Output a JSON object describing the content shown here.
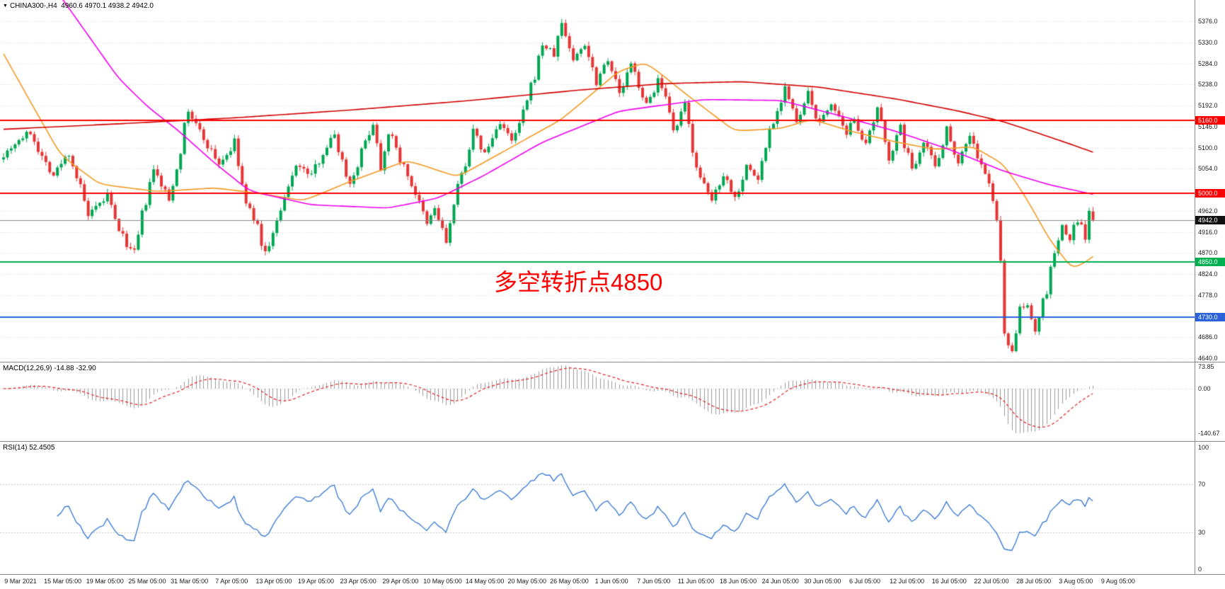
{
  "header": {
    "symbol": "CHINA300-,H4",
    "ohlc": "4960.6 4970.1 4938.2 4942.0"
  },
  "icons": {
    "symbol_dropdown": "▼"
  },
  "chart_data": [
    {
      "type": "candlestick",
      "title": "CHINA300- H4 candlestick chart",
      "symbol": "CHINA300-",
      "timeframe": "H4",
      "up_color": "#00A651",
      "down_color": "#E53535",
      "current_ohlc": {
        "open": 4960.6,
        "high": 4970.1,
        "low": 4938.2,
        "close": 4942.0
      },
      "current_price": {
        "value": 4942.0,
        "label": "4942.0",
        "badge_color": "#111111"
      },
      "y_axis": {
        "min": 4640,
        "max": 5376,
        "step": 46,
        "ticks": [
          5376,
          5330,
          5284,
          5238,
          5192,
          5146,
          5100,
          5054,
          4962,
          4916,
          4870,
          4824,
          4778,
          4686,
          4640
        ],
        "hidden_ticks": [
          5008,
          4732
        ]
      },
      "x_labels": [
        "9 Mar 2021",
        "15 Mar 05:00",
        "19 Mar 05:00",
        "25 Mar 05:00",
        "31 Mar 05:00",
        "7 Apr 05:00",
        "13 Apr 05:00",
        "19 Apr 05:00",
        "23 Apr 05:00",
        "29 Apr 05:00",
        "10 May 05:00",
        "14 May 05:00",
        "20 May 05:00",
        "26 May 05:00",
        "1 Jun 05:00",
        "7 Jun 05:00",
        "11 Jun 05:00",
        "18 Jun 05:00",
        "24 Jun 05:00",
        "30 Jun 05:00",
        "6 Jul 05:00",
        "12 Jul 05:00",
        "16 Jul 05:00",
        "22 Jul 05:00",
        "28 Jul 05:00",
        "3 Aug 05:00",
        "9 Aug 05:00"
      ],
      "horizontal_levels": [
        {
          "price": 5160.0,
          "label": "5160.0",
          "color": "#FF0000"
        },
        {
          "price": 5000.0,
          "label": "5000.0",
          "color": "#FF0000"
        },
        {
          "price": 4850.0,
          "label": "4850.0",
          "color": "#00B050"
        },
        {
          "price": 4730.0,
          "label": "4730.0",
          "color": "#2962D9"
        }
      ],
      "annotation": {
        "text": "多空转折点4850",
        "color": "#FF0000"
      },
      "price_path_anchors": [
        [
          0,
          5085
        ],
        [
          3,
          5110
        ],
        [
          7,
          5135
        ],
        [
          10,
          5080
        ],
        [
          13,
          5040
        ],
        [
          17,
          5090
        ],
        [
          20,
          5010
        ],
        [
          22,
          4950
        ],
        [
          25,
          4975
        ],
        [
          27,
          4995
        ],
        [
          29,
          4940
        ],
        [
          31,
          4905
        ],
        [
          34,
          4862
        ],
        [
          36,
          4950
        ],
        [
          39,
          5050
        ],
        [
          41,
          5020
        ],
        [
          43,
          4985
        ],
        [
          46,
          5100
        ],
        [
          48,
          5180
        ],
        [
          50,
          5150
        ],
        [
          53,
          5105
        ],
        [
          56,
          5065
        ],
        [
          58,
          5085
        ],
        [
          60,
          5105
        ],
        [
          63,
          4975
        ],
        [
          65,
          4950
        ],
        [
          68,
          4868
        ],
        [
          71,
          4935
        ],
        [
          74,
          5010
        ],
        [
          76,
          5065
        ],
        [
          78,
          5050
        ],
        [
          80,
          5040
        ],
        [
          83,
          5090
        ],
        [
          86,
          5130
        ],
        [
          88,
          5070
        ],
        [
          90,
          5020
        ],
        [
          93,
          5090
        ],
        [
          96,
          5158
        ],
        [
          98,
          5060
        ],
        [
          100,
          5138
        ],
        [
          103,
          5075
        ],
        [
          105,
          5040
        ],
        [
          107,
          5000
        ],
        [
          110,
          4930
        ],
        [
          112,
          4968
        ],
        [
          115,
          4895
        ],
        [
          118,
          5010
        ],
        [
          120,
          5070
        ],
        [
          122,
          5135
        ],
        [
          125,
          5085
        ],
        [
          127,
          5120
        ],
        [
          129,
          5158
        ],
        [
          132,
          5110
        ],
        [
          134,
          5150
        ],
        [
          136,
          5200
        ],
        [
          138,
          5260
        ],
        [
          140,
          5325
        ],
        [
          143,
          5305
        ],
        [
          145,
          5372
        ],
        [
          147,
          5320
        ],
        [
          148,
          5290
        ],
        [
          151,
          5330
        ],
        [
          154,
          5245
        ],
        [
          157,
          5300
        ],
        [
          160,
          5215
        ],
        [
          163,
          5280
        ],
        [
          165,
          5240
        ],
        [
          167,
          5190
        ],
        [
          170,
          5248
        ],
        [
          172,
          5200
        ],
        [
          174,
          5130
        ],
        [
          177,
          5190
        ],
        [
          179,
          5100
        ],
        [
          181,
          5030
        ],
        [
          184,
          4985
        ],
        [
          187,
          5045
        ],
        [
          190,
          4990
        ],
        [
          193,
          5060
        ],
        [
          196,
          5030
        ],
        [
          199,
          5140
        ],
        [
          201,
          5180
        ],
        [
          203,
          5235
        ],
        [
          206,
          5150
        ],
        [
          209,
          5215
        ],
        [
          212,
          5150
        ],
        [
          215,
          5200
        ],
        [
          217,
          5160
        ],
        [
          219,
          5120
        ],
        [
          221,
          5170
        ],
        [
          224,
          5100
        ],
        [
          227,
          5180
        ],
        [
          230,
          5080
        ],
        [
          233,
          5140
        ],
        [
          236,
          5050
        ],
        [
          239,
          5120
        ],
        [
          242,
          5060
        ],
        [
          245,
          5140
        ],
        [
          248,
          5070
        ],
        [
          251,
          5130
        ],
        [
          253,
          5080
        ],
        [
          255,
          5040
        ],
        [
          257,
          4990
        ],
        [
          258,
          4950
        ],
        [
          259,
          4838
        ],
        [
          260,
          4690
        ],
        [
          262,
          4660
        ],
        [
          264,
          4748
        ],
        [
          266,
          4752
        ],
        [
          268,
          4705
        ],
        [
          270,
          4760
        ],
        [
          271,
          4790
        ],
        [
          273,
          4870
        ],
        [
          275,
          4925
        ],
        [
          277,
          4900
        ],
        [
          279,
          4945
        ],
        [
          281,
          4905
        ],
        [
          283,
          4942
        ]
      ],
      "moving_averages": [
        {
          "name": "fast-ma-orange",
          "color": "#F59A23",
          "anchors": [
            [
              0,
              5305
            ],
            [
              8,
              5185
            ],
            [
              15,
              5082
            ],
            [
              25,
              5020
            ],
            [
              40,
              5004
            ],
            [
              55,
              5012
            ],
            [
              68,
              4998
            ],
            [
              78,
              4984
            ],
            [
              90,
              5026
            ],
            [
              105,
              5072
            ],
            [
              118,
              5036
            ],
            [
              130,
              5092
            ],
            [
              145,
              5162
            ],
            [
              160,
              5268
            ],
            [
              167,
              5286
            ],
            [
              178,
              5212
            ],
            [
              190,
              5136
            ],
            [
              202,
              5142
            ],
            [
              210,
              5162
            ],
            [
              220,
              5136
            ],
            [
              232,
              5112
            ],
            [
              242,
              5096
            ],
            [
              252,
              5102
            ],
            [
              260,
              5062
            ],
            [
              266,
              4985
            ],
            [
              272,
              4895
            ],
            [
              278,
              4832
            ],
            [
              283,
              4862
            ]
          ]
        },
        {
          "name": "slow-ma-magenta",
          "color": "#F000F0",
          "anchors": [
            [
              15,
              5428
            ],
            [
              22,
              5345
            ],
            [
              30,
              5250
            ],
            [
              38,
              5185
            ],
            [
              45,
              5140
            ],
            [
              55,
              5065
            ],
            [
              64,
              5005
            ],
            [
              80,
              4975
            ],
            [
              100,
              4968
            ],
            [
              113,
              4990
            ],
            [
              125,
              5040
            ],
            [
              140,
              5112
            ],
            [
              160,
              5180
            ],
            [
              182,
              5205
            ],
            [
              202,
              5203
            ],
            [
              218,
              5168
            ],
            [
              232,
              5135
            ],
            [
              246,
              5095
            ],
            [
              260,
              5048
            ],
            [
              272,
              5018
            ],
            [
              283,
              4998
            ]
          ]
        },
        {
          "name": "long-ma-red",
          "color": "#D40000",
          "anchors": [
            [
              0,
              5140
            ],
            [
              30,
              5152
            ],
            [
              60,
              5165
            ],
            [
              90,
              5182
            ],
            [
              120,
              5202
            ],
            [
              150,
              5226
            ],
            [
              172,
              5240
            ],
            [
              192,
              5244
            ],
            [
              212,
              5232
            ],
            [
              232,
              5206
            ],
            [
              248,
              5180
            ],
            [
              260,
              5156
            ],
            [
              270,
              5128
            ],
            [
              277,
              5108
            ],
            [
              283,
              5090
            ]
          ]
        }
      ]
    },
    {
      "type": "macd",
      "label": "MACD(12,26,9)",
      "params": [
        12,
        26,
        9
      ],
      "value_main": "-14.88",
      "value_signal": "-32.90",
      "y_ticks": [
        "73.85",
        "0.00",
        "-140.67"
      ],
      "histogram_color": "#9a9a9a",
      "signal_color": "#E02020"
    },
    {
      "type": "rsi",
      "label": "RSI(14)",
      "period": 14,
      "value": "52.4505",
      "y_ticks": [
        "100",
        "70",
        "30",
        "0"
      ],
      "levels": [
        70,
        30
      ],
      "line_color": "#3577D4"
    }
  ]
}
